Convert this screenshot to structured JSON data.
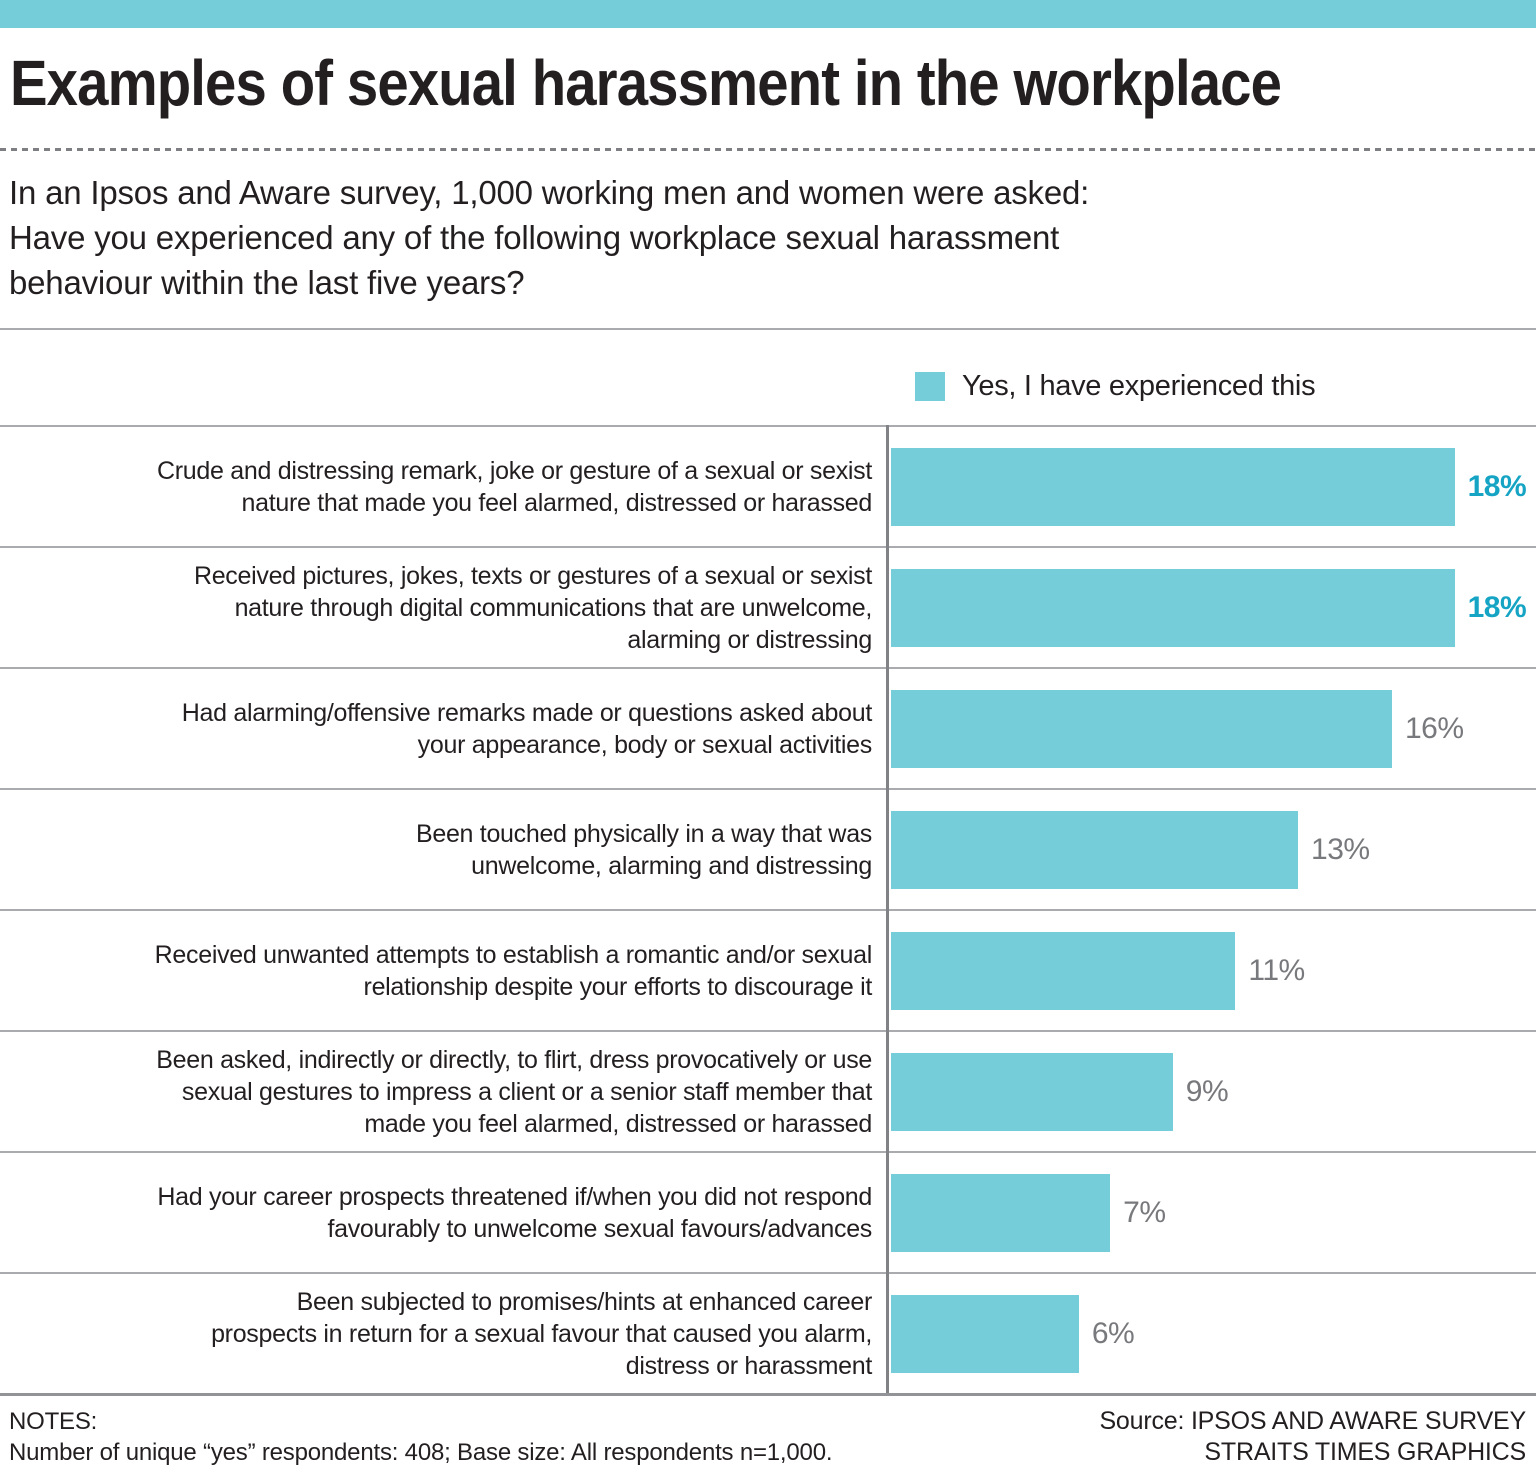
{
  "colors": {
    "accent_teal": "#75cdd9",
    "emphasis_teal": "#15a4c4",
    "value_gray": "#78797c",
    "text_dark": "#231f20",
    "separator_gray": "#a9abae"
  },
  "header": {
    "title": "Examples of sexual harassment in the workplace",
    "intro": "In an Ipsos and Aware survey, 1,000 working men and women were asked:\nHave you experienced any of the following workplace sexual harassment\nbehaviour within the last five years?"
  },
  "chart_data": {
    "type": "bar",
    "orientation": "horizontal",
    "title": "Examples of sexual harassment in the workplace",
    "legend": [
      "Yes, I have experienced this"
    ],
    "legend_position": "top-right",
    "grid": false,
    "xlim": [
      0,
      20.6
    ],
    "categories": [
      "Crude and distressing remark, joke or gesture of a sexual or sexist\nnature that made you feel alarmed, distressed or harassed",
      "Received pictures, jokes, texts or gestures of a sexual or sexist\nnature through digital communications that are unwelcome,\nalarming or distressing",
      "Had alarming/offensive remarks made or questions asked about\nyour appearance, body or sexual activities",
      "Been touched physically in a way that was\nunwelcome, alarming and distressing",
      "Received unwanted attempts to establish a romantic and/or sexual\nrelationship despite your efforts to discourage it",
      "Been asked, indirectly or directly, to flirt, dress provocatively or use\nsexual gestures to impress a client or a senior staff member that\nmade you feel alarmed, distressed or harassed",
      "Had your career prospects threatened if/when you did not respond\nfavourably to unwelcome sexual favours/advances",
      "Been subjected to promises/hints at enhanced career\nprospects in return for a sexual favour that caused you alarm,\ndistress or harassment"
    ],
    "values": [
      18,
      18,
      16,
      13,
      11,
      9,
      7,
      6
    ],
    "value_labels": [
      "18%",
      "18%",
      "16%",
      "13%",
      "11%",
      "9%",
      "7%",
      "6%"
    ],
    "emphasized": [
      true,
      true,
      false,
      false,
      false,
      false,
      false,
      false
    ]
  },
  "legend": {
    "label": "Yes, I have experienced this"
  },
  "footer": {
    "notes_title": "NOTES:",
    "notes_body": "Number of unique “yes” respondents: 408; Base size: All respondents n=1,000.",
    "source_line1": "Source: IPSOS AND AWARE SURVEY",
    "source_line2": "STRAITS TIMES GRAPHICS"
  }
}
